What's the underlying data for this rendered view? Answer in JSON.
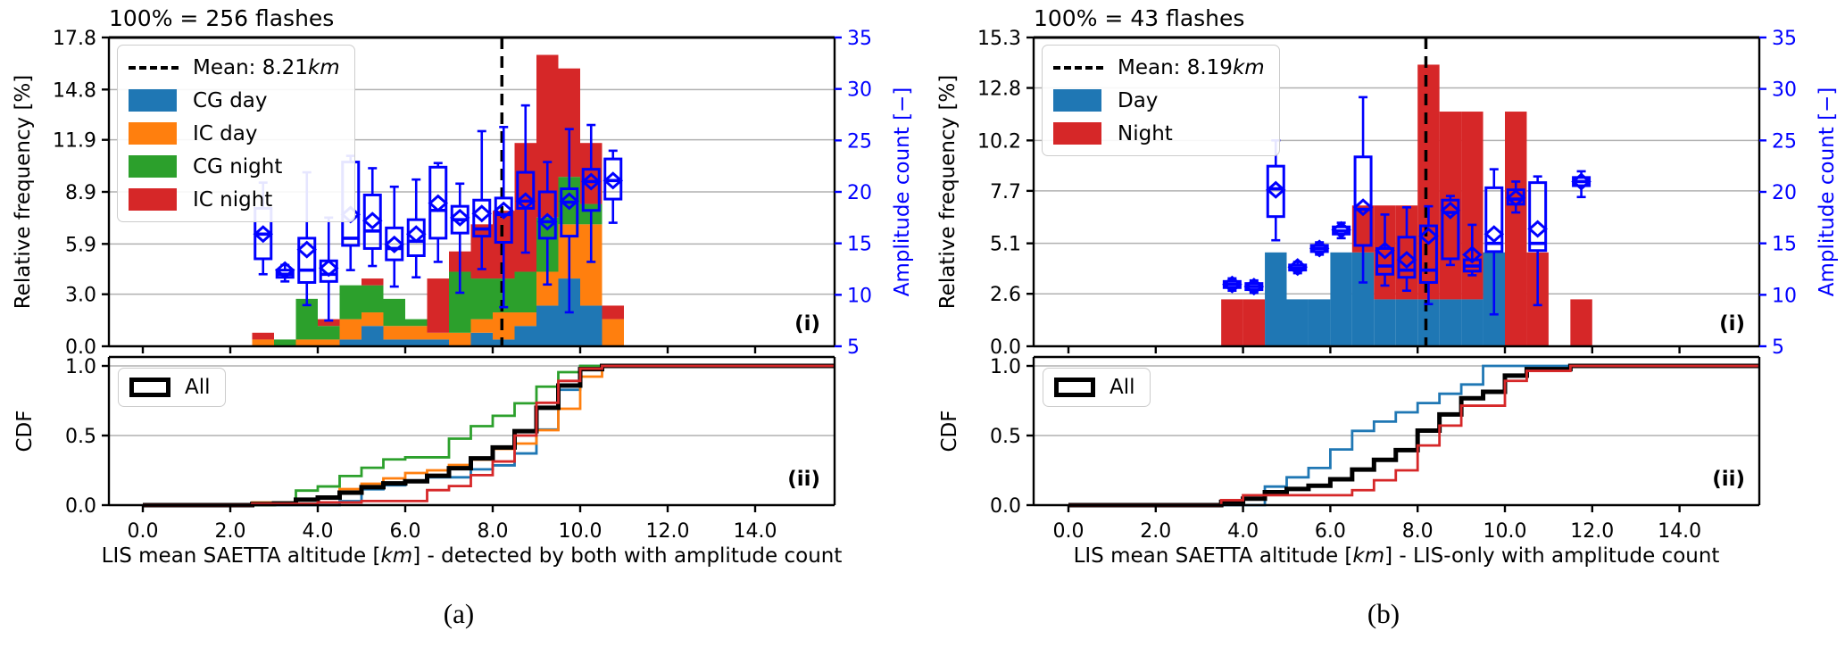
{
  "figure": {
    "background": "#ffffff",
    "captions": {
      "a": "(a)",
      "b": "(b)"
    }
  },
  "colors": {
    "cg_day": "#1f77b4",
    "ic_day": "#ff7f0e",
    "cg_night": "#2ca02c",
    "ic_night": "#d62728",
    "day": "#1f77b4",
    "night": "#d62728",
    "boxplot": "#0000ff",
    "right_axis": "#0000ff",
    "mean_line": "#000000",
    "cdf_all": "#000000",
    "grid": "#b0b0b0"
  },
  "chart_data": [
    {
      "type": "bar",
      "subtype": "stacked-histogram+boxplots+cdf",
      "title": "100% = 256 flashes",
      "total_flashes": 256,
      "panel_label_hist": "(i)",
      "panel_label_cdf": "(ii)",
      "ylabel_left": "Relative frequency [%]",
      "ylabel_right": "Amplitude count [−]",
      "ylabel_cdf": "CDF",
      "xlabel_parts": [
        {
          "t": "LIS mean SAETTA altitude [",
          "i": false
        },
        {
          "t": "km",
          "i": true
        },
        {
          "t": "] - detected by both with amplitude count",
          "i": false
        }
      ],
      "xlim": [
        -0.78,
        15.82
      ],
      "ylim_left": [
        0,
        17.8
      ],
      "ylim_right": [
        5,
        35
      ],
      "ylim_cdf": [
        0,
        1.0
      ],
      "grid": true,
      "xticks": {
        "values": [
          0,
          2,
          4,
          6,
          8,
          10,
          12,
          14
        ],
        "labels": [
          "0.0",
          "2.0",
          "4.0",
          "6.0",
          "8.0",
          "10.0",
          "12.0",
          "14.0"
        ]
      },
      "yticks_left": {
        "values": [
          17.8,
          14.8,
          11.9,
          8.9,
          5.9,
          3.0,
          0.0
        ],
        "labels": [
          "17.8",
          "14.8",
          "11.9",
          "8.9",
          "5.9",
          "3.0",
          "0.0"
        ]
      },
      "yticks_right": {
        "values": [
          35,
          30,
          25,
          20,
          15,
          10,
          5
        ],
        "labels": [
          "35",
          "30",
          "25",
          "20",
          "15",
          "10",
          "5"
        ]
      },
      "yticks_cdf": {
        "values": [
          1.0,
          0.5,
          0.0
        ],
        "labels": [
          "1.0",
          "0.5",
          "0.0"
        ]
      },
      "mean_km": 8.21,
      "legend": {
        "position": "upper-left",
        "entries": [
          {
            "swatch": "dashed-line",
            "parts": [
              {
                "t": "Mean: 8.21 ",
                "i": false
              },
              {
                "t": "km",
                "i": true
              }
            ]
          },
          {
            "swatch": "#1f77b4",
            "parts": [
              {
                "t": "CG day",
                "i": false
              }
            ]
          },
          {
            "swatch": "#ff7f0e",
            "parts": [
              {
                "t": "IC day",
                "i": false
              }
            ]
          },
          {
            "swatch": "#2ca02c",
            "parts": [
              {
                "t": "CG night",
                "i": false
              }
            ]
          },
          {
            "swatch": "#d62728",
            "parts": [
              {
                "t": "IC night",
                "i": false
              }
            ]
          }
        ]
      },
      "cdf_legend_label": "All",
      "bin_edges": [
        2.5,
        3.0,
        3.5,
        4.0,
        4.5,
        5.0,
        5.5,
        6.0,
        6.5,
        7.0,
        7.5,
        8.0,
        8.5,
        9.0,
        9.5,
        10.0,
        10.5,
        11.0
      ],
      "series": [
        {
          "name": "CG day",
          "color": "#1f77b4",
          "counts": [
            0,
            0,
            0,
            0,
            1,
            3,
            1,
            1,
            1,
            0,
            2,
            1,
            3,
            6,
            10,
            6,
            0
          ]
        },
        {
          "name": "IC day",
          "color": "#ff7f0e",
          "counts": [
            1,
            0,
            1,
            1,
            3,
            2,
            2,
            2,
            1,
            2,
            2,
            4,
            2,
            5,
            8,
            12,
            4
          ]
        },
        {
          "name": "CG night",
          "color": "#2ca02c",
          "counts": [
            0,
            1,
            6,
            2,
            5,
            4,
            4,
            1,
            0,
            9,
            6,
            5,
            6,
            8,
            7,
            3,
            0
          ]
        },
        {
          "name": "IC night",
          "color": "#d62728",
          "counts": [
            1,
            0,
            0,
            1,
            0,
            1,
            0,
            0,
            8,
            3,
            8,
            10,
            19,
            24,
            16,
            9,
            2
          ]
        }
      ],
      "boxplots": [
        {
          "x": 2.75,
          "lo": 12.0,
          "q1": 13.5,
          "med": 15.9,
          "q3": 18.4,
          "hi": 20.9,
          "mean": 15.9
        },
        {
          "x": 3.25,
          "lo": 11.3,
          "q1": 11.7,
          "med": 12.0,
          "q3": 12.4,
          "hi": 12.9,
          "mean": 12.4
        },
        {
          "x": 3.75,
          "lo": 9.0,
          "q1": 11.2,
          "med": 12.4,
          "q3": 15.5,
          "hi": 21.9,
          "mean": 14.4
        },
        {
          "x": 4.25,
          "lo": 7.5,
          "q1": 11.3,
          "med": 12.0,
          "q3": 13.3,
          "hi": 17.5,
          "mean": 12.6
        },
        {
          "x": 4.75,
          "lo": 12.4,
          "q1": 14.8,
          "med": 15.5,
          "q3": 22.9,
          "hi": 23.5,
          "mean": 17.8
        },
        {
          "x": 5.25,
          "lo": 12.8,
          "q1": 14.5,
          "med": 16.2,
          "q3": 19.7,
          "hi": 22.3,
          "mean": 17.2
        },
        {
          "x": 5.75,
          "lo": 10.8,
          "q1": 13.4,
          "med": 14.5,
          "q3": 16.5,
          "hi": 20.5,
          "mean": 14.9
        },
        {
          "x": 6.25,
          "lo": 11.7,
          "q1": 13.8,
          "med": 15.2,
          "q3": 17.3,
          "hi": 21.2,
          "mean": 15.9
        },
        {
          "x": 6.75,
          "lo": 13.2,
          "q1": 15.5,
          "med": 18.2,
          "q3": 22.4,
          "hi": 22.8,
          "mean": 18.9
        },
        {
          "x": 7.25,
          "lo": 10.2,
          "q1": 16.0,
          "med": 17.3,
          "q3": 18.6,
          "hi": 20.8,
          "mean": 17.5
        },
        {
          "x": 7.75,
          "lo": 12.5,
          "q1": 15.7,
          "med": 16.4,
          "q3": 19.2,
          "hi": 25.9,
          "mean": 17.9
        },
        {
          "x": 8.25,
          "lo": 8.8,
          "q1": 15.1,
          "med": 17.8,
          "q3": 19.4,
          "hi": 26.3,
          "mean": 18.2
        },
        {
          "x": 8.75,
          "lo": 14.1,
          "q1": 18.4,
          "med": 19.1,
          "q3": 21.9,
          "hi": 28.4,
          "mean": 19.1
        },
        {
          "x": 9.25,
          "lo": 11.0,
          "q1": 15.5,
          "med": 17.1,
          "q3": 20.0,
          "hi": 22.9,
          "mean": 17.1
        },
        {
          "x": 9.75,
          "lo": 8.3,
          "q1": 15.7,
          "med": 19.0,
          "q3": 20.3,
          "hi": 26.1,
          "mean": 19.1
        },
        {
          "x": 10.25,
          "lo": 13.2,
          "q1": 18.2,
          "med": 21.0,
          "q3": 22.2,
          "hi": 26.5,
          "mean": 21.0
        },
        {
          "x": 10.75,
          "lo": 17.0,
          "q1": 19.3,
          "med": 21.1,
          "q3": 23.2,
          "hi": 24.0,
          "mean": 21.1
        }
      ]
    },
    {
      "type": "bar",
      "subtype": "stacked-histogram+boxplots+cdf",
      "title": "100% = 43 flashes",
      "total_flashes": 43,
      "panel_label_hist": "(i)",
      "panel_label_cdf": "(ii)",
      "ylabel_left": "Relative frequency [%]",
      "ylabel_right": "Amplitude count [−]",
      "ylabel_cdf": "CDF",
      "xlabel_parts": [
        {
          "t": "LIS mean SAETTA altitude [",
          "i": false
        },
        {
          "t": "km",
          "i": true
        },
        {
          "t": "] - LIS-only with amplitude count",
          "i": false
        }
      ],
      "xlim": [
        -0.8,
        15.82
      ],
      "ylim_left": [
        0,
        15.3
      ],
      "ylim_right": [
        5,
        35
      ],
      "ylim_cdf": [
        0,
        1.0
      ],
      "grid": true,
      "xticks": {
        "values": [
          0,
          2,
          4,
          6,
          8,
          10,
          12,
          14
        ],
        "labels": [
          "0.0",
          "2.0",
          "4.0",
          "6.0",
          "8.0",
          "10.0",
          "12.0",
          "14.0"
        ]
      },
      "yticks_left": {
        "values": [
          15.3,
          12.8,
          10.2,
          7.7,
          5.1,
          2.6,
          0.0
        ],
        "labels": [
          "15.3",
          "12.8",
          "10.2",
          "7.7",
          "5.1",
          "2.6",
          "0.0"
        ]
      },
      "yticks_right": {
        "values": [
          35,
          30,
          25,
          20,
          15,
          10,
          5
        ],
        "labels": [
          "35",
          "30",
          "25",
          "20",
          "15",
          "10",
          "5"
        ]
      },
      "yticks_cdf": {
        "values": [
          1.0,
          0.5,
          0.0
        ],
        "labels": [
          "1.0",
          "0.5",
          "0.0"
        ]
      },
      "mean_km": 8.19,
      "legend": {
        "position": "upper-left",
        "entries": [
          {
            "swatch": "dashed-line",
            "parts": [
              {
                "t": "Mean: 8.19 ",
                "i": false
              },
              {
                "t": "km",
                "i": true
              }
            ]
          },
          {
            "swatch": "#1f77b4",
            "parts": [
              {
                "t": "Day",
                "i": false
              }
            ]
          },
          {
            "swatch": "#d62728",
            "parts": [
              {
                "t": "Night",
                "i": false
              }
            ]
          }
        ]
      },
      "cdf_legend_label": "All",
      "bin_edges": [
        3.5,
        4.0,
        4.5,
        5.0,
        5.5,
        6.0,
        6.5,
        7.0,
        7.5,
        8.0,
        8.5,
        9.0,
        9.5,
        10.0,
        10.5,
        11.0,
        11.5,
        12.0
      ],
      "series": [
        {
          "name": "Day",
          "color": "#1f77b4",
          "counts": [
            0,
            0,
            2,
            1,
            1,
            2,
            2,
            1,
            1,
            1,
            1,
            1,
            2,
            0,
            0,
            0,
            0
          ]
        },
        {
          "name": "Night",
          "color": "#d62728",
          "counts": [
            1,
            1,
            0,
            0,
            0,
            0,
            1,
            2,
            2,
            5,
            4,
            4,
            0,
            5,
            2,
            0,
            1
          ]
        }
      ],
      "boxplots": [
        {
          "x": 3.75,
          "lo": 10.4,
          "q1": 10.7,
          "med": 11.0,
          "q3": 11.3,
          "hi": 11.6,
          "mean": 11.0
        },
        {
          "x": 4.25,
          "lo": 10.2,
          "q1": 10.5,
          "med": 10.8,
          "q3": 11.1,
          "hi": 11.4,
          "mean": 10.8
        },
        {
          "x": 4.75,
          "lo": 15.3,
          "q1": 17.6,
          "med": 20.3,
          "q3": 22.5,
          "hi": 25.0,
          "mean": 20.2
        },
        {
          "x": 5.25,
          "lo": 12.1,
          "q1": 12.4,
          "med": 12.6,
          "q3": 12.9,
          "hi": 13.2,
          "mean": 12.7
        },
        {
          "x": 5.75,
          "lo": 13.9,
          "q1": 14.2,
          "med": 14.5,
          "q3": 14.8,
          "hi": 15.1,
          "mean": 14.5
        },
        {
          "x": 6.25,
          "lo": 15.5,
          "q1": 15.9,
          "med": 16.2,
          "q3": 16.6,
          "hi": 17.0,
          "mean": 16.3
        },
        {
          "x": 6.75,
          "lo": 11.2,
          "q1": 14.8,
          "med": 18.3,
          "q3": 23.4,
          "hi": 29.2,
          "mean": 18.5
        },
        {
          "x": 7.25,
          "lo": 10.9,
          "q1": 12.0,
          "med": 12.8,
          "q3": 14.5,
          "hi": 17.8,
          "mean": 14.3
        },
        {
          "x": 7.75,
          "lo": 10.4,
          "q1": 11.7,
          "med": 12.4,
          "q3": 15.6,
          "hi": 18.5,
          "mean": 13.4
        },
        {
          "x": 8.25,
          "lo": 9.1,
          "q1": 11.2,
          "med": 12.4,
          "q3": 16.7,
          "hi": 18.6,
          "mean": 15.7
        },
        {
          "x": 8.75,
          "lo": 12.9,
          "q1": 13.5,
          "med": 18.0,
          "q3": 19.2,
          "hi": 19.6,
          "mean": 18.2
        },
        {
          "x": 9.25,
          "lo": 11.9,
          "q1": 12.3,
          "med": 12.8,
          "q3": 13.4,
          "hi": 16.8,
          "mean": 13.9
        },
        {
          "x": 9.75,
          "lo": 8.1,
          "q1": 14.2,
          "med": 15.0,
          "q3": 20.4,
          "hi": 22.2,
          "mean": 15.9
        },
        {
          "x": 10.25,
          "lo": 18.0,
          "q1": 18.8,
          "med": 19.3,
          "q3": 20.2,
          "hi": 21.0,
          "mean": 19.4
        },
        {
          "x": 10.75,
          "lo": 9.0,
          "q1": 14.3,
          "med": 15.0,
          "q3": 20.9,
          "hi": 21.5,
          "mean": 16.4
        },
        {
          "x": 11.75,
          "lo": 19.5,
          "q1": 20.6,
          "med": 21.0,
          "q3": 21.4,
          "hi": 22.0,
          "mean": 21.0
        }
      ]
    }
  ]
}
